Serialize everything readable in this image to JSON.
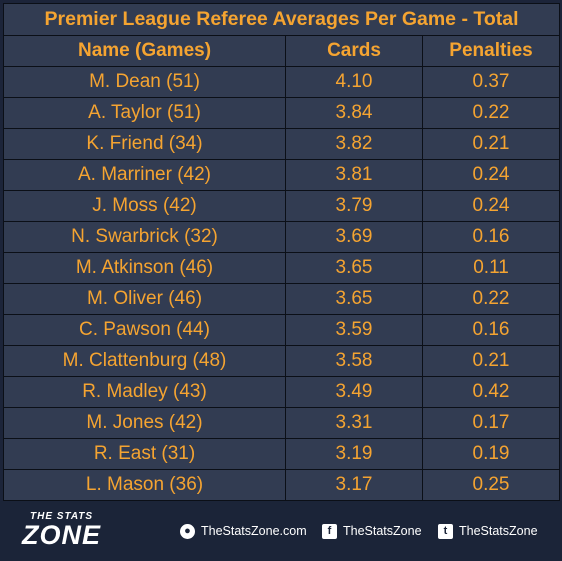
{
  "chart_data": {
    "type": "table",
    "title": "Premier League Referee Averages Per Game - Total",
    "columns": [
      "Name (Games)",
      "Cards",
      "Penalties"
    ],
    "rows": [
      {
        "name": "M. Dean (51)",
        "cards": "4.10",
        "penalties": "0.37"
      },
      {
        "name": "A. Taylor (51)",
        "cards": "3.84",
        "penalties": "0.22"
      },
      {
        "name": "K. Friend (34)",
        "cards": "3.82",
        "penalties": "0.21"
      },
      {
        "name": "A. Marriner (42)",
        "cards": "3.81",
        "penalties": "0.24"
      },
      {
        "name": "J. Moss (42)",
        "cards": "3.79",
        "penalties": "0.24"
      },
      {
        "name": "N. Swarbrick (32)",
        "cards": "3.69",
        "penalties": "0.16"
      },
      {
        "name": "M. Atkinson (46)",
        "cards": "3.65",
        "penalties": "0.11"
      },
      {
        "name": "M. Oliver (46)",
        "cards": "3.65",
        "penalties": "0.22"
      },
      {
        "name": "C. Pawson (44)",
        "cards": "3.59",
        "penalties": "0.16"
      },
      {
        "name": "M. Clattenburg (48)",
        "cards": "3.58",
        "penalties": "0.21"
      },
      {
        "name": "R. Madley (43)",
        "cards": "3.49",
        "penalties": "0.42"
      },
      {
        "name": "M. Jones (42)",
        "cards": "3.31",
        "penalties": "0.17"
      },
      {
        "name": "R. East (31)",
        "cards": "3.19",
        "penalties": "0.19"
      },
      {
        "name": "L. Mason (36)",
        "cards": "3.17",
        "penalties": "0.25"
      }
    ]
  },
  "footer": {
    "logo_small": "THE STATS",
    "logo_big": "ZONE",
    "website": "TheStatsZone.com",
    "facebook": "TheStatsZone",
    "twitter": "TheStatsZone",
    "website_icon": "globe-icon",
    "facebook_icon": "facebook-icon",
    "twitter_icon": "twitter-icon"
  },
  "colors": {
    "text": "#f5a431",
    "cell": "#323c52",
    "background": "#1b2438"
  }
}
